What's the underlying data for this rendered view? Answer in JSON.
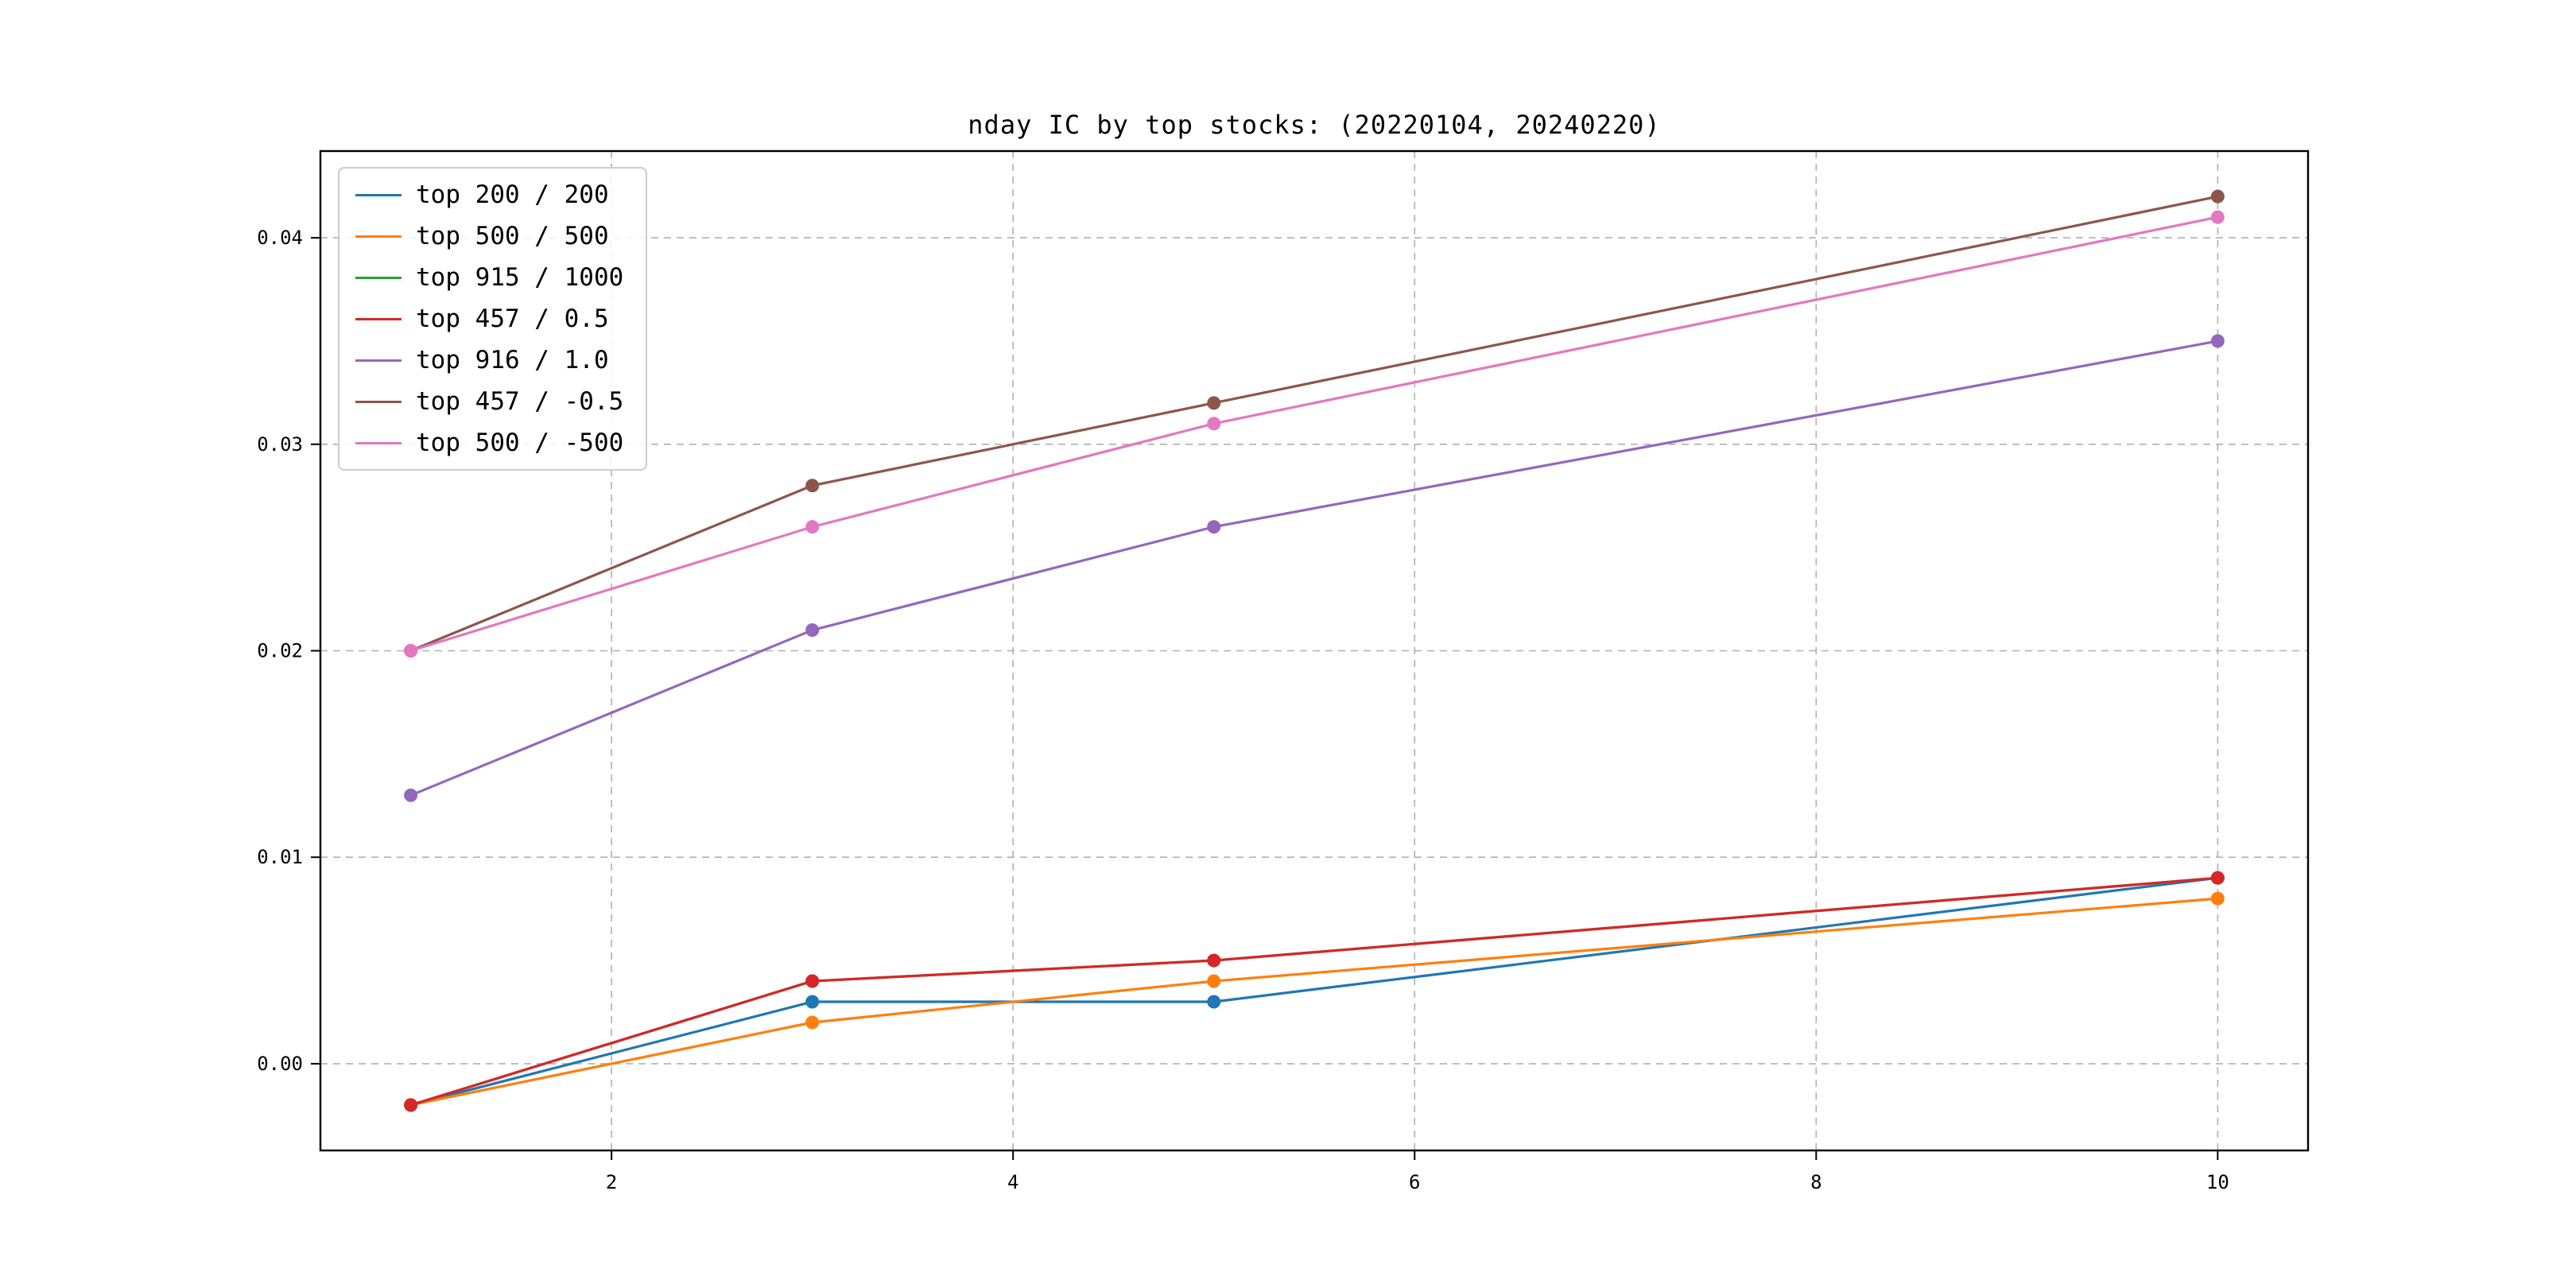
{
  "chart_data": {
    "type": "line",
    "title": "nday IC by top stocks: (20220104, 20240220)",
    "xlabel": "",
    "ylabel": "",
    "x": [
      1,
      3,
      5,
      10
    ],
    "xlim": [
      0.55,
      10.45
    ],
    "ylim": [
      -0.0042,
      0.0442
    ],
    "grid": true,
    "grid_style": "dashed",
    "grid_color": "#b0b0b0",
    "legend_position": "upper left",
    "xticks": [
      {
        "v": 2,
        "label": "2"
      },
      {
        "v": 4,
        "label": "4"
      },
      {
        "v": 6,
        "label": "6"
      },
      {
        "v": 8,
        "label": "8"
      },
      {
        "v": 10,
        "label": "10"
      }
    ],
    "yticks": [
      {
        "v": 0.0,
        "label": "0.00"
      },
      {
        "v": 0.01,
        "label": "0.01"
      },
      {
        "v": 0.02,
        "label": "0.02"
      },
      {
        "v": 0.03,
        "label": "0.03"
      },
      {
        "v": 0.04,
        "label": "0.04"
      }
    ],
    "series": [
      {
        "name": "top 200 / 200",
        "color": "#1f77b4",
        "values": [
          -0.002,
          0.003,
          0.003,
          0.009
        ]
      },
      {
        "name": "top 500 / 500",
        "color": "#ff7f0e",
        "values": [
          -0.002,
          0.002,
          0.004,
          0.008
        ]
      },
      {
        "name": "top 915 / 1000",
        "color": "#2ca02c",
        "values": [
          -0.002,
          0.004,
          0.005,
          0.009
        ]
      },
      {
        "name": "top 457 / 0.5",
        "color": "#d62728",
        "values": [
          -0.002,
          0.004,
          0.005,
          0.009
        ]
      },
      {
        "name": "top 916 / 1.0",
        "color": "#9467bd",
        "values": [
          0.013,
          0.021,
          0.026,
          0.035
        ]
      },
      {
        "name": "top 457 / -0.5",
        "color": "#8c564b",
        "values": [
          0.02,
          0.028,
          0.032,
          0.042
        ]
      },
      {
        "name": "top 500 / -500",
        "color": "#e377c2",
        "values": [
          0.02,
          0.026,
          0.031,
          0.041
        ]
      }
    ]
  }
}
